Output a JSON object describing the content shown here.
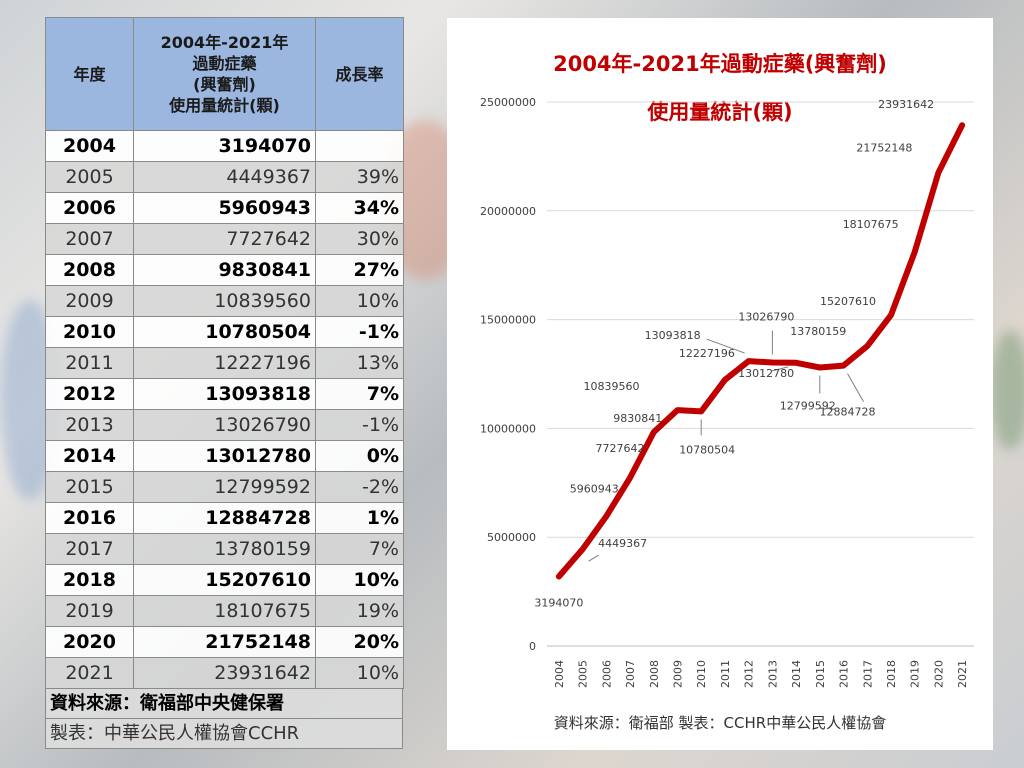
{
  "table": {
    "headers": {
      "year": "年度",
      "usage_lines": [
        "2004年-2021年",
        "過動症藥",
        "(興奮劑)",
        "使用量統計(顆)"
      ],
      "rate": "成長率"
    },
    "rows": [
      {
        "year": "2004",
        "value": "3194070",
        "rate": ""
      },
      {
        "year": "2005",
        "value": "4449367",
        "rate": "39%"
      },
      {
        "year": "2006",
        "value": "5960943",
        "rate": "34%"
      },
      {
        "year": "2007",
        "value": "7727642",
        "rate": "30%"
      },
      {
        "year": "2008",
        "value": "9830841",
        "rate": "27%"
      },
      {
        "year": "2009",
        "value": "10839560",
        "rate": "10%"
      },
      {
        "year": "2010",
        "value": "10780504",
        "rate": "-1%"
      },
      {
        "year": "2011",
        "value": "12227196",
        "rate": "13%"
      },
      {
        "year": "2012",
        "value": "13093818",
        "rate": "7%"
      },
      {
        "year": "2013",
        "value": "13026790",
        "rate": "-1%"
      },
      {
        "year": "2014",
        "value": "13012780",
        "rate": "0%"
      },
      {
        "year": "2015",
        "value": "12799592",
        "rate": "-2%"
      },
      {
        "year": "2016",
        "value": "12884728",
        "rate": "1%"
      },
      {
        "year": "2017",
        "value": "13780159",
        "rate": "7%"
      },
      {
        "year": "2018",
        "value": "15207610",
        "rate": "10%"
      },
      {
        "year": "2019",
        "value": "18107675",
        "rate": "19%"
      },
      {
        "year": "2020",
        "value": "21752148",
        "rate": "20%"
      },
      {
        "year": "2021",
        "value": "23931642",
        "rate": "10%"
      }
    ],
    "source": "資料來源：衛福部中央健保署",
    "maker": "製表：中華公民人權協會CCHR"
  },
  "chart_data": {
    "type": "line",
    "title_lines": [
      "2004年-2021年過動症藥(興奮劑)",
      "使用量統計(顆)"
    ],
    "x": [
      "2004",
      "2005",
      "2006",
      "2007",
      "2008",
      "2009",
      "2010",
      "2011",
      "2012",
      "2013",
      "2014",
      "2015",
      "2016",
      "2017",
      "2018",
      "2019",
      "2020",
      "2021"
    ],
    "series": [
      {
        "values": [
          3194070,
          4449367,
          5960943,
          7727642,
          9830841,
          10839560,
          10780504,
          12227196,
          13093818,
          13026790,
          13012780,
          12799592,
          12884728,
          13780159,
          15207610,
          18107675,
          21752148,
          23931642
        ]
      }
    ],
    "ylim": [
      0,
      25000000
    ],
    "yticks": [
      "0",
      "5000000",
      "10000000",
      "15000000",
      "20000000",
      "25000000"
    ],
    "grid": true,
    "line_color": "#c00000",
    "source": "資料來源：衛福部 製表：CCHR中華公民人權協會"
  }
}
